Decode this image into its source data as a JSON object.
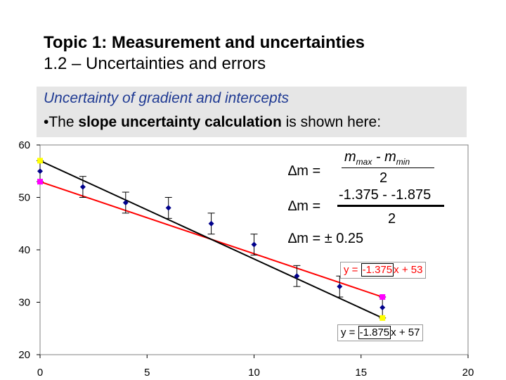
{
  "title": {
    "line1": "Topic 1: Measurement and uncertainties",
    "line2": "1.2 – Uncertainties and errors"
  },
  "subtitle": {
    "heading": "Uncertainty of gradient and intercepts",
    "bullet_symbol": "•",
    "bullet_pre": "The ",
    "bullet_bold": "slope uncertainty calculation",
    "bullet_post": " is shown here:"
  },
  "formula": {
    "delta_m": "∆m =",
    "numerator_m": "m",
    "sub_max": "max",
    "minus": " - ",
    "sub_min": "min",
    "denominator1": "2",
    "numerator2": "-1.375 - -1.875",
    "denominator2": "2",
    "result": "∆m = ± 0.25"
  },
  "equations": {
    "red": {
      "prefix": "y = ",
      "slope": "-1.375",
      "suffix": "x + 53"
    },
    "black": {
      "prefix": "y = ",
      "slope": "-1.875",
      "suffix": "x + 57"
    }
  },
  "chart_data": {
    "type": "scatter",
    "xlim": [
      0,
      20
    ],
    "ylim": [
      20,
      60
    ],
    "x_ticks": [
      "0",
      "5",
      "10",
      "15",
      "20"
    ],
    "y_ticks": [
      "20",
      "30",
      "40",
      "50",
      "60"
    ],
    "grid": false,
    "series": [
      {
        "kind": "points",
        "color": "#00008b",
        "x": [
          0,
          2,
          4,
          6,
          8,
          10,
          12,
          14,
          16
        ],
        "y": [
          55,
          52,
          49,
          48,
          45,
          41,
          35,
          33,
          29
        ],
        "error": 2
      },
      {
        "kind": "line",
        "color": "#ff0000",
        "slope": -1.375,
        "intercept": 53,
        "x": [
          0,
          16
        ]
      },
      {
        "kind": "line",
        "color": "#000000",
        "slope": -1.875,
        "intercept": 57,
        "x": [
          0,
          16
        ]
      }
    ],
    "endpoint_markers": [
      {
        "x": 0,
        "y": 53,
        "color": "#ff00ff"
      },
      {
        "x": 16,
        "y": 31,
        "color": "#ff00ff"
      },
      {
        "x": 0,
        "y": 57,
        "color": "#ffff00"
      },
      {
        "x": 16,
        "y": 27,
        "color": "#ffff00"
      }
    ]
  }
}
